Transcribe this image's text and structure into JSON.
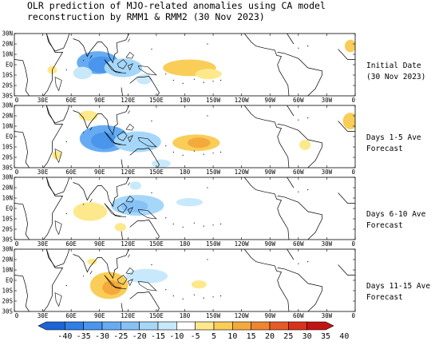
{
  "title": "OLR prediction of MJO-related anomalies using CA model\nreconstruction by RMM1 & RMM2 (30 Nov 2023)",
  "panels": [
    {
      "label": "Initial Date\n(30 Nov 2023)"
    },
    {
      "label": "Days 1-5 Ave\nForecast"
    },
    {
      "label": "Days 6-10 Ave\nForecast"
    },
    {
      "label": "Days 11-15 Ave\nForecast"
    }
  ],
  "axes": {
    "lat_ticks": [
      "30N",
      "20N",
      "10N",
      "EQ",
      "10S",
      "20S",
      "30S"
    ],
    "lon_ticks": [
      "0",
      "30E",
      "60E",
      "90E",
      "120E",
      "150E",
      "180",
      "150W",
      "120W",
      "90W",
      "60W",
      "30W",
      "0"
    ]
  },
  "colorbar": {
    "ticks": [
      "-40",
      "-35",
      "-30",
      "-25",
      "-20",
      "-15",
      "-10",
      "-5",
      "5",
      "10",
      "15",
      "20",
      "25",
      "30",
      "35",
      "40"
    ],
    "colors": [
      "#1e64d2",
      "#2f7fe6",
      "#4a96ec",
      "#67acf2",
      "#86c2f6",
      "#a6d7f9",
      "#c8e9fc",
      "#ffffff",
      "#fde98c",
      "#f9cd57",
      "#f4a93c",
      "#ee8530",
      "#e55a26",
      "#d9321c",
      "#c01414"
    ]
  }
}
